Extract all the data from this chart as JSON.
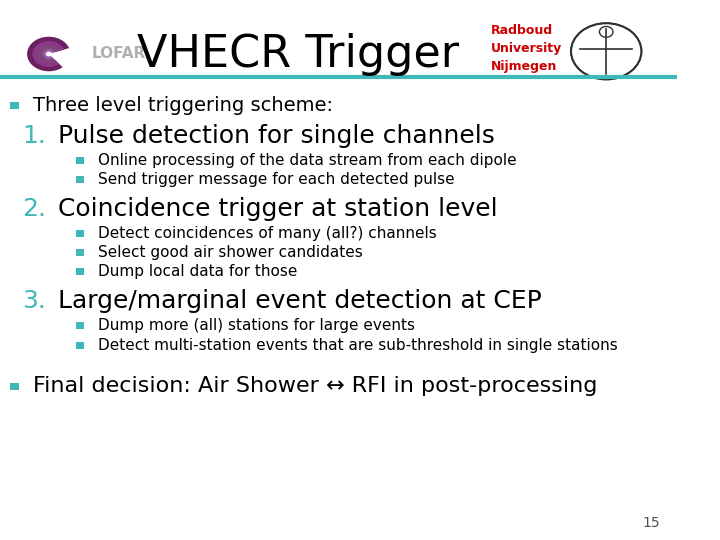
{
  "title": "VHECR Trigger",
  "title_color": "#000000",
  "title_fontsize": 32,
  "header_line_color": "#40B8B8",
  "background_color": "#FFFFFF",
  "lofar_text_color": "#B0B0B0",
  "radboud_text_color": "#CC0000",
  "bullet_color": "#40B8B8",
  "number_color": "#40B8B8",
  "text_color": "#000000",
  "slide_number": "15",
  "content": [
    {
      "type": "bullet",
      "level": 0,
      "num": "",
      "text": "Three level triggering scheme:",
      "fontsize": 14
    },
    {
      "type": "numbered",
      "level": 1,
      "num": "1.",
      "text": "Pulse detection for single channels",
      "fontsize": 18
    },
    {
      "type": "bullet",
      "level": 2,
      "num": "",
      "text": "Online processing of the data stream from each dipole",
      "fontsize": 11
    },
    {
      "type": "bullet",
      "level": 2,
      "num": "",
      "text": "Send trigger message for each detected pulse",
      "fontsize": 11
    },
    {
      "type": "numbered",
      "level": 1,
      "num": "2.",
      "text": "Coincidence trigger at station level",
      "fontsize": 18
    },
    {
      "type": "bullet",
      "level": 2,
      "num": "",
      "text": "Detect coincidences of many (all?) channels",
      "fontsize": 11
    },
    {
      "type": "bullet",
      "level": 2,
      "num": "",
      "text": "Select good air shower candidates",
      "fontsize": 11
    },
    {
      "type": "bullet",
      "level": 2,
      "num": "",
      "text": "Dump local data for those",
      "fontsize": 11
    },
    {
      "type": "numbered",
      "level": 1,
      "num": "3.",
      "text": "Large/marginal event detection at CEP",
      "fontsize": 18
    },
    {
      "type": "bullet",
      "level": 2,
      "num": "",
      "text": "Dump more (all) stations for large events",
      "fontsize": 11
    },
    {
      "type": "bullet",
      "level": 2,
      "num": "",
      "text": "Detect multi-station events that are sub-threshold in single stations",
      "fontsize": 11
    },
    {
      "type": "bullet",
      "level": 0,
      "num": "",
      "text": "Final decision: Air Shower ↔ RFI in post-processing",
      "fontsize": 16
    }
  ]
}
